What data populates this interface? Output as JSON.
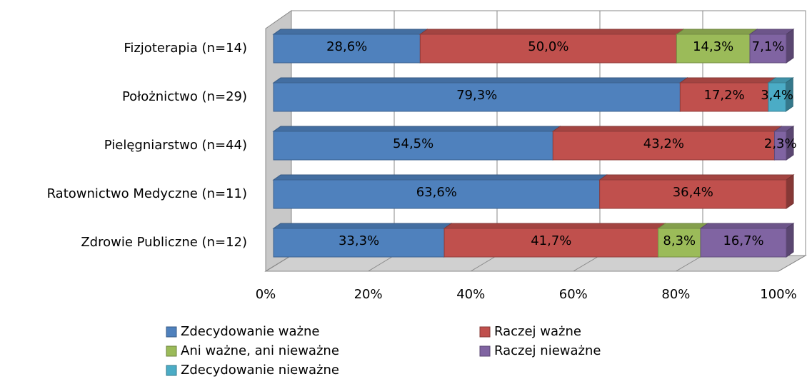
{
  "chart_data": {
    "type": "bar",
    "orientation": "horizontal",
    "stacked": true,
    "three_d": true,
    "categories": [
      "Fizjoterapia (n=14)",
      "Położnictwo (n=29)",
      "Pielęgniarstwo (n=44)",
      "Ratownictwo Medyczne (n=11)",
      "Zdrowie Publiczne (n=12)"
    ],
    "series": [
      {
        "name": "Zdecydowanie ważne",
        "color": "#4f81bd",
        "values": [
          28.6,
          79.3,
          54.5,
          63.6,
          33.3
        ],
        "value_labels": [
          "28,6%",
          "79,3%",
          "54,5%",
          "63,6%",
          "33,3%"
        ]
      },
      {
        "name": "Raczej ważne",
        "color": "#c0504d",
        "values": [
          50.0,
          17.2,
          43.2,
          36.4,
          41.7
        ],
        "value_labels": [
          "50,0%",
          "17,2%",
          "43,2%",
          "36,4%",
          "41,7%"
        ]
      },
      {
        "name": "Ani ważne, ani nieważne",
        "color": "#9bbb59",
        "values": [
          14.3,
          null,
          null,
          null,
          8.3
        ],
        "value_labels": [
          "14,3%",
          null,
          null,
          null,
          "8,3%"
        ]
      },
      {
        "name": "Raczej nieważne",
        "color": "#8064a2",
        "values": [
          7.1,
          null,
          2.3,
          null,
          16.7
        ],
        "value_labels": [
          "7,1%",
          null,
          "2,3%",
          null,
          "16,7%"
        ]
      },
      {
        "name": "Zdecydowanie nieważne",
        "color": "#4bacc6",
        "values": [
          null,
          3.4,
          null,
          null,
          null
        ],
        "value_labels": [
          null,
          "3,4%",
          null,
          null,
          null
        ]
      }
    ],
    "xlim": [
      0,
      100
    ],
    "xticks": [
      {
        "value": 0,
        "label": "0%"
      },
      {
        "value": 20,
        "label": "20%"
      },
      {
        "value": 40,
        "label": "40%"
      },
      {
        "value": 60,
        "label": "60%"
      },
      {
        "value": 80,
        "label": "80%"
      },
      {
        "value": 100,
        "label": "100%"
      }
    ],
    "grid": true,
    "legend": "bottom"
  }
}
